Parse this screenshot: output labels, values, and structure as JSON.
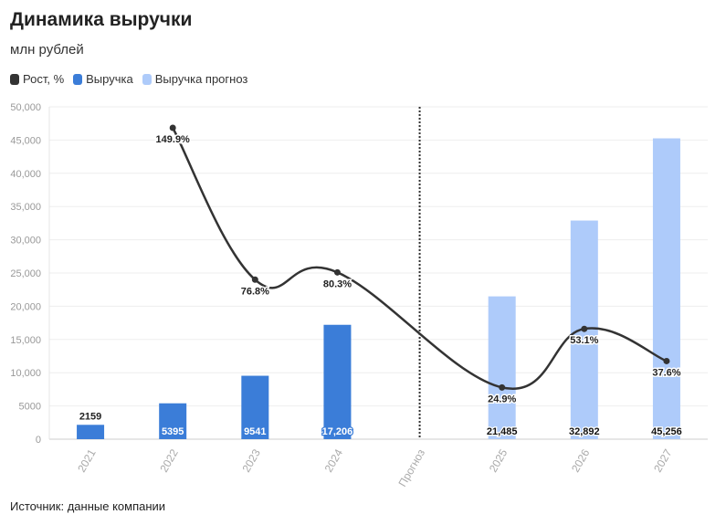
{
  "header": {
    "title": "Динамика выручки",
    "subtitle": "млн рублей"
  },
  "legend": [
    {
      "label": "Рост, %",
      "color": "#333333"
    },
    {
      "label": "Выручка",
      "color": "#3b7dd8"
    },
    {
      "label": "Выручка прогноз",
      "color": "#aecbfa"
    }
  ],
  "source": "Источник: данные компании",
  "chart_data": {
    "type": "bar",
    "categories": [
      "2021",
      "2022",
      "2023",
      "2024",
      "Прогноз",
      "2025",
      "2026",
      "2027"
    ],
    "ylim": [
      0,
      50000
    ],
    "yticks": [
      {
        "value": 0,
        "label": "0"
      },
      {
        "value": 5000,
        "label": "5000"
      },
      {
        "value": 10000,
        "label": "10,000"
      },
      {
        "value": 15000,
        "label": "15,000"
      },
      {
        "value": 20000,
        "label": "20,000"
      },
      {
        "value": 25000,
        "label": "25,000"
      },
      {
        "value": 30000,
        "label": "30,000"
      },
      {
        "value": 35000,
        "label": "35,000"
      },
      {
        "value": 40000,
        "label": "40,000"
      },
      {
        "value": 45000,
        "label": "45,000"
      },
      {
        "value": 50000,
        "label": "50,000"
      }
    ],
    "divider_category": "Прогноз",
    "series": [
      {
        "name": "Выручка",
        "kind": "bar",
        "color": "#3b7dd8",
        "points": [
          {
            "category": "2021",
            "value": 2159,
            "label": "2159"
          },
          {
            "category": "2022",
            "value": 5395,
            "label": "5395"
          },
          {
            "category": "2023",
            "value": 9541,
            "label": "9541"
          },
          {
            "category": "2024",
            "value": 17206,
            "label": "17,206"
          }
        ]
      },
      {
        "name": "Выручка прогноз",
        "kind": "bar",
        "color": "#aecbfa",
        "points": [
          {
            "category": "2025",
            "value": 21485,
            "label": "21,485"
          },
          {
            "category": "2026",
            "value": 32892,
            "label": "32,892"
          },
          {
            "category": "2027",
            "value": 45256,
            "label": "45,256"
          }
        ]
      },
      {
        "name": "Рост, %",
        "kind": "line",
        "color": "#333333",
        "points": [
          {
            "category": "2022",
            "value": 149.9,
            "label": "149.9%"
          },
          {
            "category": "2023",
            "value": 76.8,
            "label": "76.8%"
          },
          {
            "category": "2024",
            "value": 80.3,
            "label": "80.3%"
          },
          {
            "category": "2025",
            "value": 24.9,
            "label": "24.9%"
          },
          {
            "category": "2026",
            "value": 53.1,
            "label": "53.1%"
          },
          {
            "category": "2027",
            "value": 37.6,
            "label": "37.6%"
          }
        ]
      }
    ]
  }
}
